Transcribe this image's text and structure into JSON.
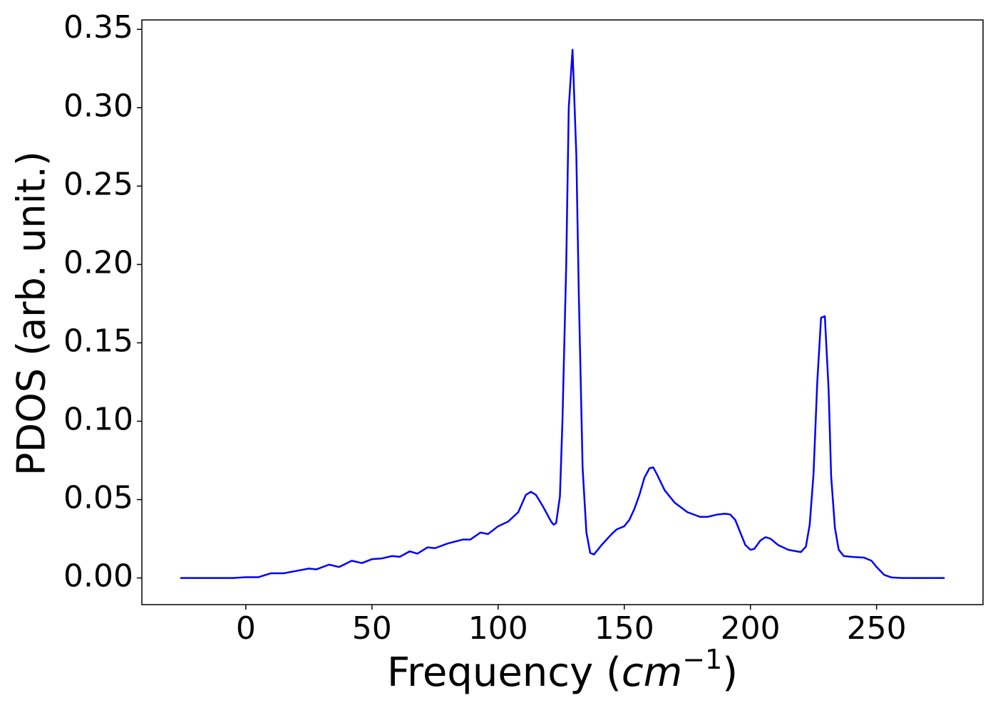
{
  "chart_data": {
    "type": "line",
    "xlabel": [
      "Frequency (",
      "cm",
      "−1",
      ")"
    ],
    "ylabel": "PDOS (arb. unit.)",
    "xlim": [
      -41.2,
      292.2
    ],
    "ylim": [
      -0.017,
      0.356
    ],
    "xticks": [
      0,
      50,
      100,
      150,
      200,
      250
    ],
    "yticks": [
      {
        "value": 0,
        "label": "0.00"
      },
      {
        "value": 0.05,
        "label": "0.05"
      },
      {
        "value": 0.1,
        "label": "0.10"
      },
      {
        "value": 0.15,
        "label": "0.15"
      },
      {
        "value": 0.2,
        "label": "0.20"
      },
      {
        "value": 0.25,
        "label": "0.25"
      },
      {
        "value": 0.3,
        "label": "0.30"
      },
      {
        "value": 0.35,
        "label": "0.35"
      }
    ],
    "x": [
      -26,
      -15,
      -5,
      0,
      5,
      10,
      15,
      20,
      25,
      28,
      33,
      37,
      42,
      46,
      50,
      54,
      58,
      61,
      65,
      68,
      72,
      75,
      80,
      86,
      89,
      93,
      96,
      100,
      104,
      108,
      111,
      113,
      115,
      118,
      121,
      122,
      123,
      124.5,
      125.5,
      127,
      128,
      129.5,
      131,
      132,
      133.5,
      135,
      136.5,
      138,
      141,
      145,
      147,
      150,
      152,
      154,
      156,
      158,
      160,
      161.5,
      163,
      166,
      170,
      175,
      180,
      183,
      187,
      190,
      192,
      194,
      196,
      198,
      200,
      201.5,
      204,
      206,
      208,
      211,
      215,
      220,
      222,
      223.5,
      225,
      226.5,
      228,
      229.5,
      231,
      232,
      233.5,
      235,
      237,
      240,
      245,
      248,
      250,
      253,
      256,
      260,
      270,
      277
    ],
    "series": [
      {
        "name": "PDOS",
        "color": "#0000ff",
        "values": [
          0,
          0,
          0,
          0.0005,
          0.0005,
          0.003,
          0.003,
          0.0045,
          0.006,
          0.0055,
          0.0085,
          0.007,
          0.011,
          0.0095,
          0.012,
          0.0125,
          0.014,
          0.0135,
          0.017,
          0.0155,
          0.0195,
          0.019,
          0.022,
          0.0245,
          0.0245,
          0.029,
          0.028,
          0.033,
          0.036,
          0.042,
          0.053,
          0.055,
          0.053,
          0.045,
          0.036,
          0.034,
          0.035,
          0.052,
          0.1,
          0.2,
          0.3,
          0.337,
          0.27,
          0.18,
          0.07,
          0.029,
          0.016,
          0.015,
          0.021,
          0.028,
          0.031,
          0.033,
          0.037,
          0.044,
          0.053,
          0.064,
          0.07,
          0.0705,
          0.066,
          0.056,
          0.048,
          0.042,
          0.039,
          0.039,
          0.0405,
          0.041,
          0.0405,
          0.037,
          0.029,
          0.021,
          0.018,
          0.0185,
          0.024,
          0.026,
          0.025,
          0.021,
          0.018,
          0.0165,
          0.02,
          0.034,
          0.066,
          0.125,
          0.166,
          0.167,
          0.12,
          0.065,
          0.032,
          0.018,
          0.014,
          0.0135,
          0.013,
          0.011,
          0.007,
          0.002,
          0.0003,
          0,
          0,
          0
        ]
      }
    ]
  }
}
